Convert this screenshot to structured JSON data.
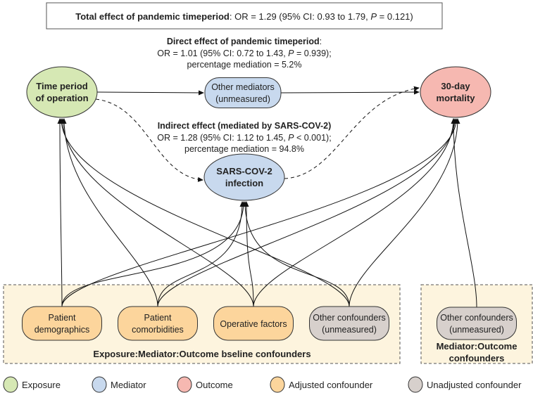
{
  "total": {
    "bold": "Total effect of pandemic timeperiod",
    "rest_a": ": OR = 1.29 (95% CI: 0.93 to 1.79, ",
    "p": "P",
    "rest_b": " = 0.121)"
  },
  "direct": {
    "title": "Direct effect of pandemic timeperiod",
    "colon": ":",
    "line2a": "OR = 1.01 (95% CI: 0.72 to 1.43, ",
    "p": "P",
    "line2b": " = 0.939);",
    "line3": "percentage mediation = 5.2%"
  },
  "indirect": {
    "title": "Indirect effect (mediated by SARS-COV-2)",
    "line2a": "OR = 1.28 (95% CI: 1.12 to 1.45, ",
    "p": "P",
    "line2b": " < 0.001);",
    "line3": "percentage mediation = 94.8%"
  },
  "nodes": {
    "exposure": {
      "l1": "Time period",
      "l2": "of operation",
      "type": "exposure"
    },
    "other_mediators": {
      "l1": "Other mediators",
      "l2": "(unmeasured)",
      "type": "mediator"
    },
    "outcome": {
      "l1": "30-day",
      "l2": "mortality",
      "type": "outcome"
    },
    "sars": {
      "l1": "SARS-COV-2",
      "l2": "infection",
      "type": "mediator"
    },
    "demographics": {
      "l1": "Patient",
      "l2": "demographics",
      "type": "adjusted"
    },
    "comorbidities": {
      "l1": "Patient",
      "l2": "comorbidities",
      "type": "adjusted"
    },
    "operative": {
      "l1": "Operative factors",
      "l2": "",
      "type": "adjusted"
    },
    "other_conf": {
      "l1": "Other confounders",
      "l2": "(unmeasured)",
      "type": "unadjusted"
    },
    "mo_conf": {
      "l1": "Other confounders",
      "l2": "(unmeasured)",
      "type": "unadjusted"
    }
  },
  "groups": {
    "baseline": "Exposure:Mediator:Outcome bseline confounders",
    "mediator_outcome_l1": "Mediator:Outcome",
    "mediator_outcome_l2": "confounders"
  },
  "legend": [
    {
      "label": "Exposure",
      "type": "exposure"
    },
    {
      "label": "Mediator",
      "type": "mediator"
    },
    {
      "label": "Outcome",
      "type": "outcome"
    },
    {
      "label": "Adjusted confounder",
      "type": "adjusted"
    },
    {
      "label": "Unadjusted confounder",
      "type": "unadjusted"
    }
  ],
  "colors": {
    "exposure": "#d6e8b4",
    "mediator": "#c8d9ee",
    "outcome": "#f6b8b1",
    "adjusted": "#fcd59c",
    "unadjusted": "#d7d0cc",
    "group_fill": "#fdf4de"
  },
  "edges": [
    [
      "exposure",
      "other_mediators",
      "solid"
    ],
    [
      "other_mediators",
      "outcome",
      "solid"
    ],
    [
      "exposure",
      "sars",
      "dashed"
    ],
    [
      "sars",
      "outcome",
      "dashed"
    ],
    [
      "demographics",
      "exposure"
    ],
    [
      "demographics",
      "sars"
    ],
    [
      "demographics",
      "outcome"
    ],
    [
      "comorbidities",
      "exposure"
    ],
    [
      "comorbidities",
      "sars"
    ],
    [
      "comorbidities",
      "outcome"
    ],
    [
      "operative",
      "exposure"
    ],
    [
      "operative",
      "sars"
    ],
    [
      "operative",
      "outcome"
    ],
    [
      "other_conf",
      "exposure"
    ],
    [
      "other_conf",
      "sars"
    ],
    [
      "other_conf",
      "outcome"
    ],
    [
      "mo_conf",
      "outcome"
    ]
  ]
}
